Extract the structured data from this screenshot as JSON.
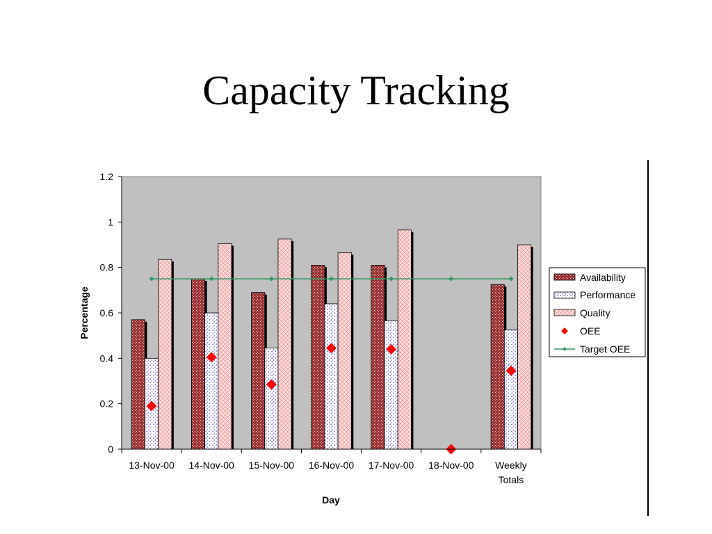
{
  "slide": {
    "title": "Capacity Tracking"
  },
  "chart_data": {
    "type": "bar",
    "title": "",
    "xlabel": "Day",
    "ylabel": "Percentage",
    "ylim": [
      0,
      1.2
    ],
    "yticks": [
      "0",
      "0.2",
      "0.4",
      "0.6",
      "0.8",
      "1",
      "1.2"
    ],
    "categories": [
      "13-Nov-00",
      "14-Nov-00",
      "15-Nov-00",
      "16-Nov-00",
      "17-Nov-00",
      "18-Nov-00",
      "Weekly Totals"
    ],
    "series": [
      {
        "name": "Availability",
        "kind": "bar",
        "color": "#993333",
        "values": [
          0.57,
          0.75,
          0.69,
          0.81,
          0.81,
          0,
          0.725
        ]
      },
      {
        "name": "Performance",
        "kind": "bar",
        "color": "#ccccff",
        "values": [
          0.4,
          0.6,
          0.445,
          0.64,
          0.565,
          0,
          0.525
        ]
      },
      {
        "name": "Quality",
        "kind": "bar",
        "color": "#ffcccc",
        "values": [
          0.835,
          0.905,
          0.925,
          0.865,
          0.965,
          0,
          0.9
        ]
      },
      {
        "name": "OEE",
        "kind": "marker",
        "color": "#ff0000",
        "values": [
          0.19,
          0.405,
          0.285,
          0.445,
          0.44,
          0,
          0.345
        ]
      },
      {
        "name": "Target OEE",
        "kind": "line",
        "color": "#339966",
        "values": [
          0.75,
          0.75,
          0.75,
          0.75,
          0.75,
          0.75,
          0.75
        ]
      }
    ],
    "plot_background": "#c0c0c0",
    "grid": false,
    "legend_position": "right"
  }
}
